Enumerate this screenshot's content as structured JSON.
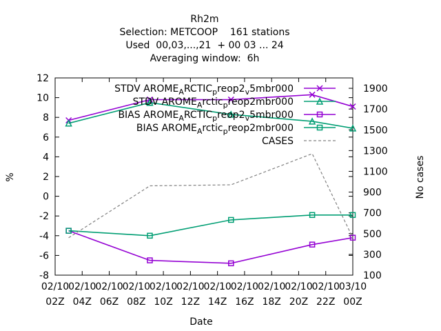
{
  "chart_data": {
    "type": "line",
    "title": [
      "Rh2m",
      "Selection: METCOOP    161 stations",
      "Used  00,03,...,21  + 00 03 ... 24",
      "Averaging window:  6h"
    ],
    "xlabel": "Date",
    "ylabel": "%",
    "y2label": "No cases",
    "x_ticks": [
      {
        "line1": "02/10",
        "line2": "02Z"
      },
      {
        "line1": "02/10",
        "line2": "04Z"
      },
      {
        "line1": "02/10",
        "line2": "06Z"
      },
      {
        "line1": "02/10",
        "line2": "08Z"
      },
      {
        "line1": "02/10",
        "line2": "10Z"
      },
      {
        "line1": "02/10",
        "line2": "12Z"
      },
      {
        "line1": "02/10",
        "line2": "14Z"
      },
      {
        "line1": "02/10",
        "line2": "16Z"
      },
      {
        "line1": "02/10",
        "line2": "18Z"
      },
      {
        "line1": "02/10",
        "line2": "20Z"
      },
      {
        "line1": "02/10",
        "line2": "22Z"
      },
      {
        "line1": "03/10",
        "line2": "00Z"
      }
    ],
    "xlim": [
      "2/10 02Z",
      "3/10 00Z"
    ],
    "x": [
      "2/10 03Z",
      "2/10 09Z",
      "2/10 15Z",
      "2/10 21Z",
      "3/10 00Z"
    ],
    "ylim": [
      -8,
      12
    ],
    "yticks": [
      -8,
      -6,
      -4,
      -2,
      0,
      2,
      4,
      6,
      8,
      10,
      12
    ],
    "y2lim": [
      100,
      2000
    ],
    "y2ticks": [
      100,
      300,
      500,
      700,
      900,
      1100,
      1300,
      1500,
      1700,
      1900
    ],
    "grid": false,
    "legend_position": "top-right",
    "series": [
      {
        "name": "STDV AROME_ARCTIC_preop2_v5mbr000",
        "label_parts": [
          "STDV AROME",
          "A",
          "RCTIC",
          "p",
          "reop2",
          "v",
          "5mbr000"
        ],
        "color": "#9400d3",
        "marker": "x",
        "axis": "y1",
        "values": [
          7.7,
          9.8,
          9.8,
          10.3,
          9.1
        ]
      },
      {
        "name": "STDV AROME_Arctic_preop2mbr000",
        "label_parts": [
          "STDV AROME",
          "A",
          "rctic",
          "p",
          "reop2mbr000"
        ],
        "color": "#009e73",
        "marker": "triangle",
        "axis": "y1",
        "values": [
          7.4,
          9.5,
          8.3,
          7.6,
          6.9
        ]
      },
      {
        "name": "BIAS AROME_ARCTIC_preop2_v5mbr000",
        "label_parts": [
          "BIAS AROME",
          "A",
          "RCTIC",
          "p",
          "reop2",
          "v",
          "5mbr000"
        ],
        "color": "#9400d3",
        "marker": "square",
        "axis": "y1",
        "values": [
          -3.5,
          -6.5,
          -6.8,
          -4.9,
          -4.2
        ]
      },
      {
        "name": "BIAS AROME_Arctic_preop2mbr000",
        "label_parts": [
          "BIAS AROME",
          "A",
          "rctic",
          "p",
          "reop2mbr000"
        ],
        "color": "#009e73",
        "marker": "square",
        "axis": "y1",
        "values": [
          -3.5,
          -4.0,
          -2.4,
          -1.9,
          -1.9
        ]
      },
      {
        "name": "CASES",
        "label_parts": [
          "CASES"
        ],
        "color": "#808080",
        "marker": "none",
        "dashed": true,
        "axis": "y2",
        "values": [
          460,
          960,
          970,
          1270,
          460
        ]
      }
    ]
  }
}
